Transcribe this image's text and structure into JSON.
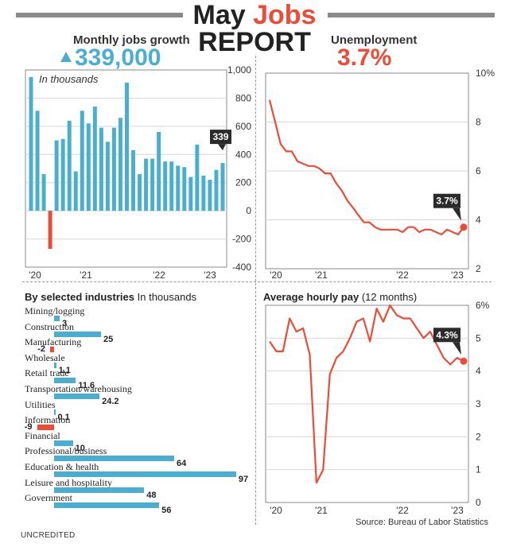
{
  "header": {
    "title_prefix": "May",
    "title_accent": "Jobs",
    "title_line2": "REPORT",
    "left_label": "Monthly jobs growth",
    "left_value": "339,000",
    "right_label": "Unemployment",
    "right_value": "3.7%",
    "colors": {
      "blue": "#4aaed0",
      "red": "#ee4b36",
      "rule": "#8a8a8a"
    }
  },
  "chart_data": [
    {
      "id": "jobs",
      "type": "bar",
      "title": "Monthly jobs growth",
      "note": "In thousands",
      "ylim": [
        -400,
        1000
      ],
      "yticks": [
        "1,000",
        "800",
        "600",
        "400",
        "200",
        "0",
        "-200",
        "-400"
      ],
      "xticks": [
        "'20",
        "'21",
        "'22",
        "'23"
      ],
      "values": [
        950,
        710,
        260,
        -270,
        500,
        510,
        640,
        280,
        710,
        620,
        740,
        590,
        490,
        590,
        660,
        910,
        430,
        260,
        370,
        370,
        560,
        350,
        350,
        320,
        310,
        240,
        470,
        250,
        220,
        290,
        339
      ],
      "callout": "339"
    },
    {
      "id": "unemployment",
      "type": "line",
      "title": "Unemployment",
      "ylim": [
        2,
        10
      ],
      "yticks": [
        "10%",
        "8",
        "6",
        "4",
        "2"
      ],
      "xticks": [
        "'20",
        "'21",
        "'22",
        "'23"
      ],
      "values": [
        8.9,
        8.0,
        7.1,
        6.8,
        6.8,
        6.4,
        6.3,
        6.2,
        6.2,
        6.1,
        5.9,
        5.9,
        5.5,
        5.2,
        4.8,
        4.5,
        4.2,
        3.9,
        3.9,
        3.7,
        3.6,
        3.6,
        3.6,
        3.6,
        3.5,
        3.7,
        3.7,
        3.5,
        3.6,
        3.6,
        3.5,
        3.4,
        3.6,
        3.5,
        3.4,
        3.7
      ],
      "callout": "3.7%"
    },
    {
      "id": "hourly_pay",
      "type": "line",
      "title": "Average hourly pay",
      "subtitle": "(12 months)",
      "ylim": [
        0,
        6
      ],
      "yticks": [
        "6%",
        "5",
        "4",
        "3",
        "2",
        "1",
        "0"
      ],
      "xticks": [
        "'20",
        "'21",
        "'22",
        "'23"
      ],
      "values": [
        4.9,
        4.6,
        4.6,
        5.6,
        5.2,
        5.3,
        4.5,
        0.6,
        1.0,
        3.9,
        4.4,
        4.6,
        5.0,
        5.5,
        5.6,
        4.9,
        5.9,
        5.5,
        6.0,
        5.7,
        5.6,
        5.6,
        5.3,
        5.0,
        5.2,
        4.8,
        4.4,
        4.2,
        4.4,
        4.3
      ],
      "callout": "4.3%"
    },
    {
      "id": "industries",
      "type": "bar",
      "title": "By selected industries",
      "subtitle": "In thousands",
      "categories": [
        "Mining/logging",
        "Construction",
        "Manufacturing",
        "Wholesale",
        "Retail trade",
        "Transportation/warehousing",
        "Utilities",
        "Information",
        "Financial",
        "Professional/business",
        "Education & health",
        "Leisure and hospitality",
        "Government"
      ],
      "values": [
        3,
        25,
        -2,
        1.1,
        11.6,
        24.2,
        0.1,
        -9,
        10,
        64,
        97,
        48,
        56
      ],
      "value_labels": [
        "3",
        "25",
        "-2",
        "1.1",
        "11.6",
        "24.2",
        "0.1",
        "-9",
        "10",
        "64",
        "97",
        "48",
        "56"
      ]
    }
  ],
  "footer": {
    "credit": "UNCREDITED",
    "source": "Source: Bureau of Labor Statistics"
  }
}
